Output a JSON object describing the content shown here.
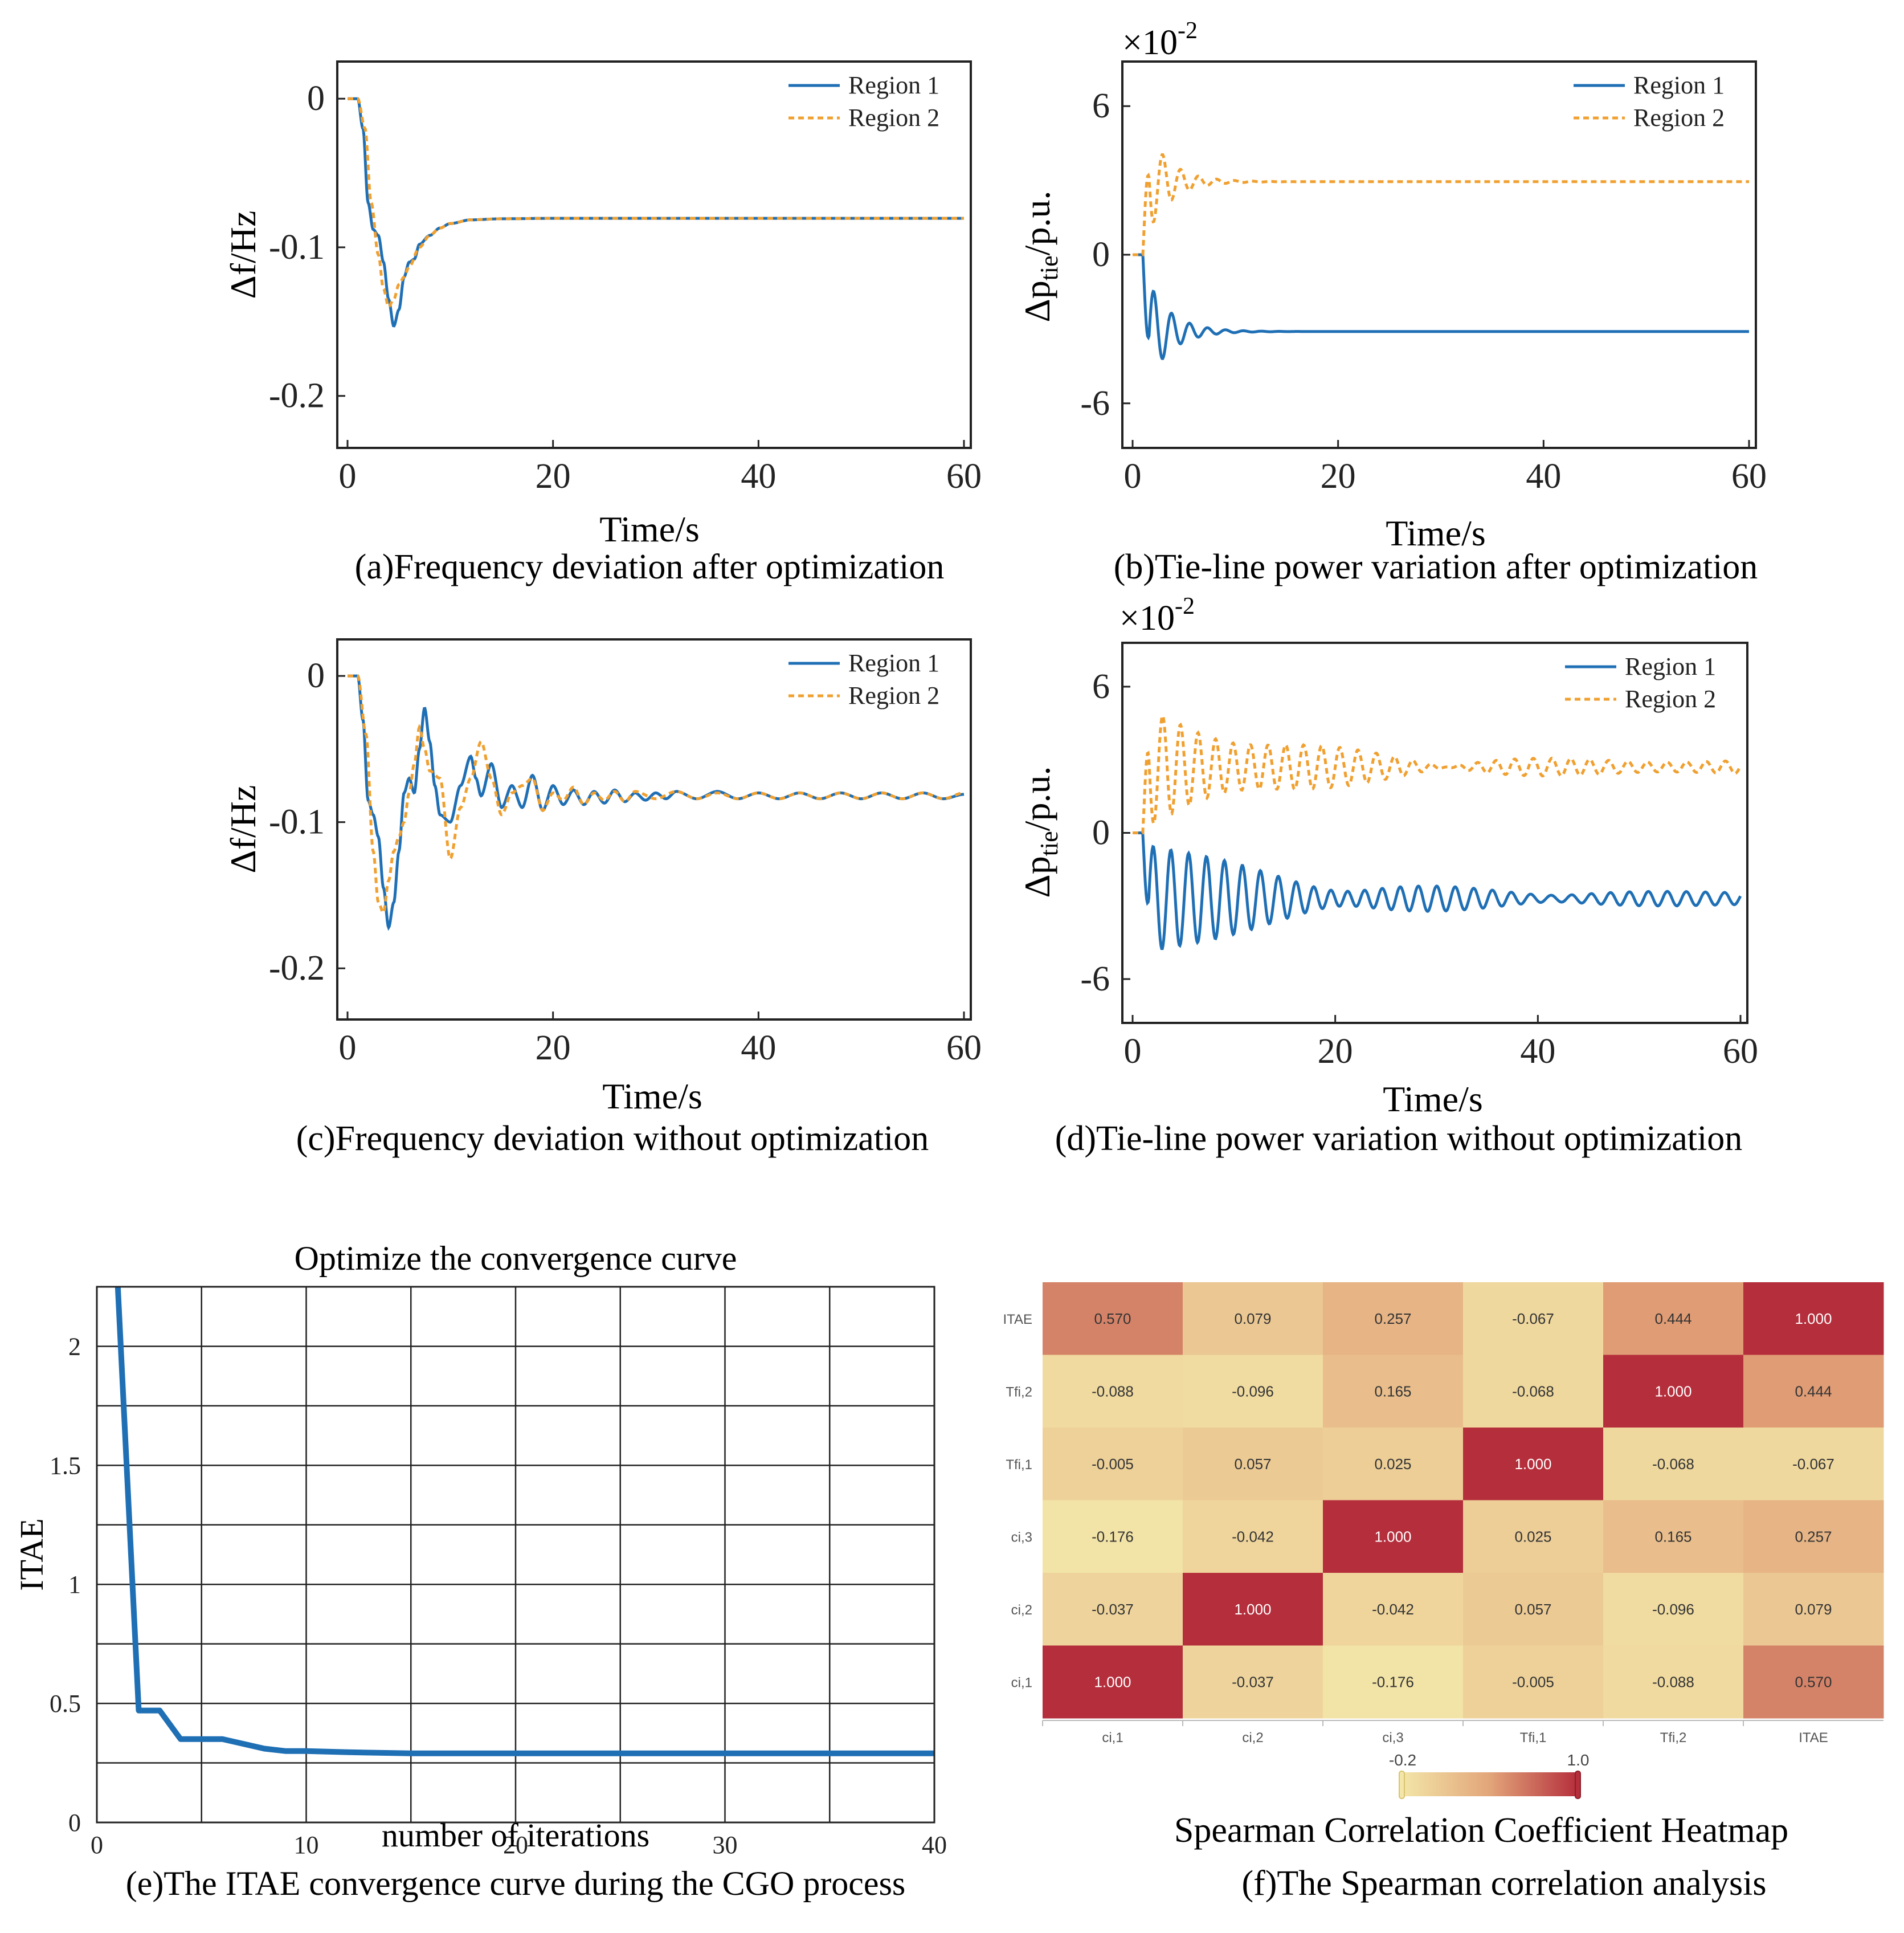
{
  "colors": {
    "region1": "#1f6fb5",
    "region2": "#f0a030",
    "itae_line": "#1f6fb5",
    "grid": "#222222",
    "heat_low": "#f3e6a8",
    "heat_high": "#b52e3c"
  },
  "chart_data": [
    {
      "id": "a",
      "type": "line",
      "caption": "(a)Frequency deviation after optimization",
      "xlabel": "Time/s",
      "ylabel": "Δf/Hz",
      "xlim": [
        0,
        60
      ],
      "ylim": [
        -0.235,
        0.025
      ],
      "xticks": [
        0,
        20,
        40,
        60
      ],
      "xtick_labels": [
        "0",
        "20",
        "40",
        "60"
      ],
      "yticks": [
        0,
        -0.1,
        -0.2
      ],
      "ytick_labels": [
        "0",
        "-0.1",
        "-0.2"
      ],
      "legend": [
        "Region 1",
        "Region 2"
      ],
      "legend_position": "top-right",
      "series": [
        {
          "name": "Region 1",
          "style": "solid",
          "points": [
            [
              0,
              0
            ],
            [
              1,
              0
            ],
            [
              1.5,
              -0.02
            ],
            [
              2,
              -0.07
            ],
            [
              2.5,
              -0.088
            ],
            [
              3,
              -0.092
            ],
            [
              3.5,
              -0.11
            ],
            [
              4,
              -0.135
            ],
            [
              4.5,
              -0.153
            ],
            [
              5,
              -0.142
            ],
            [
              5.5,
              -0.12
            ],
            [
              6,
              -0.11
            ],
            [
              6.5,
              -0.108
            ],
            [
              7,
              -0.098
            ],
            [
              8,
              -0.092
            ],
            [
              9,
              -0.087
            ],
            [
              10,
              -0.084
            ],
            [
              12,
              -0.0815
            ],
            [
              15,
              -0.0808
            ],
            [
              20,
              -0.0805
            ],
            [
              60,
              -0.0805
            ]
          ]
        },
        {
          "name": "Region 2",
          "style": "dashed",
          "points": [
            [
              0,
              0
            ],
            [
              1,
              0
            ],
            [
              1.7,
              -0.02
            ],
            [
              2.3,
              -0.07
            ],
            [
              3,
              -0.105
            ],
            [
              3.5,
              -0.128
            ],
            [
              4,
              -0.14
            ],
            [
              4.5,
              -0.135
            ],
            [
              5,
              -0.125
            ],
            [
              5.5,
              -0.12
            ],
            [
              6,
              -0.113
            ],
            [
              7,
              -0.1
            ],
            [
              8,
              -0.092
            ],
            [
              9,
              -0.087
            ],
            [
              10,
              -0.084
            ],
            [
              12,
              -0.0815
            ],
            [
              15,
              -0.0808
            ],
            [
              20,
              -0.0805
            ],
            [
              60,
              -0.0805
            ]
          ]
        }
      ]
    },
    {
      "id": "b",
      "type": "line",
      "caption": "(b)Tie-line power variation after optimization",
      "xlabel": "Time/s",
      "ylabel": "Δp_tie/p.u.",
      "scale_label": "×10",
      "scale_exp": "-2",
      "xlim": [
        0,
        60
      ],
      "ylim": [
        -7.8,
        7.8
      ],
      "xticks": [
        0,
        20,
        40,
        60
      ],
      "xtick_labels": [
        "0",
        "20",
        "40",
        "60"
      ],
      "yticks": [
        6,
        0,
        -6
      ],
      "ytick_labels": [
        "6",
        "0",
        "-6"
      ],
      "legend": [
        "Region 1",
        "Region 2"
      ],
      "legend_position": "top-right",
      "series": [
        {
          "name": "Region 1",
          "style": "solid",
          "mode": "osc",
          "start": 1.0,
          "final": -3.1,
          "amp": 2.6,
          "decay": 0.45,
          "period": 1.75,
          "sign": -1
        },
        {
          "name": "Region 2",
          "style": "dashed",
          "mode": "osc",
          "start": 1.0,
          "final": 2.95,
          "amp": 2.6,
          "decay": 0.45,
          "period": 1.75,
          "sign": 1
        }
      ]
    },
    {
      "id": "c",
      "type": "line",
      "caption": "(c)Frequency deviation without optimization",
      "xlabel": "Time/s",
      "ylabel": "Δf/Hz",
      "xlim": [
        0,
        60
      ],
      "ylim": [
        -0.235,
        0.025
      ],
      "xticks": [
        0,
        20,
        40,
        60
      ],
      "xtick_labels": [
        "0",
        "20",
        "40",
        "60"
      ],
      "yticks": [
        0,
        -0.1,
        -0.2
      ],
      "ytick_labels": [
        "0",
        "-0.1",
        "-0.2"
      ],
      "legend": [
        "Region 1",
        "Region 2"
      ],
      "legend_position": "top-right",
      "series": [
        {
          "name": "Region 1",
          "style": "solid",
          "points": [
            [
              0,
              0
            ],
            [
              1,
              0
            ],
            [
              1.5,
              -0.03
            ],
            [
              2,
              -0.085
            ],
            [
              2.5,
              -0.095
            ],
            [
              3,
              -0.11
            ],
            [
              3.5,
              -0.145
            ],
            [
              4,
              -0.172
            ],
            [
              4.5,
              -0.155
            ],
            [
              5,
              -0.12
            ],
            [
              5.5,
              -0.08
            ],
            [
              6,
              -0.07
            ],
            [
              6.5,
              -0.08
            ],
            [
              7,
              -0.05
            ],
            [
              7.5,
              -0.022
            ],
            [
              8,
              -0.045
            ],
            [
              8.5,
              -0.075
            ],
            [
              9,
              -0.095
            ],
            [
              10,
              -0.1
            ],
            [
              11,
              -0.075
            ],
            [
              12,
              -0.055
            ],
            [
              12.5,
              -0.07
            ],
            [
              13,
              -0.082
            ],
            [
              14,
              -0.06
            ],
            [
              15,
              -0.09
            ],
            [
              16,
              -0.075
            ],
            [
              17,
              -0.09
            ],
            [
              18,
              -0.068
            ],
            [
              19,
              -0.092
            ],
            [
              20,
              -0.075
            ],
            [
              21,
              -0.088
            ],
            [
              22,
              -0.078
            ],
            [
              23,
              -0.088
            ],
            [
              24,
              -0.079
            ],
            [
              25,
              -0.087
            ],
            [
              26,
              -0.078
            ],
            [
              27,
              -0.086
            ],
            [
              28,
              -0.08
            ],
            [
              29,
              -0.085
            ],
            [
              30,
              -0.08
            ],
            [
              31,
              -0.084
            ],
            [
              32,
              -0.079
            ],
            [
              34,
              -0.084
            ],
            [
              36,
              -0.079
            ],
            [
              38,
              -0.084
            ],
            [
              40,
              -0.08
            ],
            [
              42,
              -0.084
            ],
            [
              44,
              -0.08
            ],
            [
              46,
              -0.084
            ],
            [
              48,
              -0.08
            ],
            [
              50,
              -0.084
            ],
            [
              52,
              -0.08
            ],
            [
              54,
              -0.084
            ],
            [
              56,
              -0.08
            ],
            [
              58,
              -0.084
            ],
            [
              60,
              -0.081
            ]
          ]
        },
        {
          "name": "Region 2",
          "style": "dashed",
          "points": [
            [
              0,
              0
            ],
            [
              1,
              0
            ],
            [
              1.8,
              -0.04
            ],
            [
              2.5,
              -0.12
            ],
            [
              3,
              -0.155
            ],
            [
              3.5,
              -0.162
            ],
            [
              4,
              -0.14
            ],
            [
              4.5,
              -0.12
            ],
            [
              5,
              -0.11
            ],
            [
              5.5,
              -0.1
            ],
            [
              6,
              -0.08
            ],
            [
              6.5,
              -0.06
            ],
            [
              7,
              -0.035
            ],
            [
              7.5,
              -0.05
            ],
            [
              8,
              -0.065
            ],
            [
              9,
              -0.07
            ],
            [
              10,
              -0.125
            ],
            [
              11,
              -0.09
            ],
            [
              12,
              -0.07
            ],
            [
              13,
              -0.045
            ],
            [
              14,
              -0.07
            ],
            [
              15,
              -0.095
            ],
            [
              16,
              -0.08
            ],
            [
              17,
              -0.075
            ],
            [
              18,
              -0.07
            ],
            [
              19,
              -0.092
            ],
            [
              20,
              -0.08
            ],
            [
              21,
              -0.085
            ],
            [
              22,
              -0.076
            ],
            [
              23,
              -0.088
            ],
            [
              24,
              -0.08
            ],
            [
              25,
              -0.085
            ],
            [
              26,
              -0.079
            ],
            [
              27,
              -0.086
            ],
            [
              28,
              -0.079
            ],
            [
              30,
              -0.084
            ],
            [
              32,
              -0.079
            ],
            [
              34,
              -0.084
            ],
            [
              36,
              -0.08
            ],
            [
              38,
              -0.084
            ],
            [
              40,
              -0.08
            ],
            [
              42,
              -0.084
            ],
            [
              44,
              -0.08
            ],
            [
              46,
              -0.084
            ],
            [
              48,
              -0.08
            ],
            [
              50,
              -0.084
            ],
            [
              52,
              -0.08
            ],
            [
              54,
              -0.084
            ],
            [
              56,
              -0.08
            ],
            [
              58,
              -0.084
            ],
            [
              60,
              -0.08
            ]
          ]
        }
      ]
    },
    {
      "id": "d",
      "type": "line",
      "caption": "(d)Tie-line power variation without optimization",
      "xlabel": "Time/s",
      "ylabel": "Δp_tie/p.u.",
      "scale_label": "×10",
      "scale_exp": "-2",
      "xlim": [
        0,
        60
      ],
      "ylim": [
        -7.8,
        7.8
      ],
      "xticks": [
        0,
        20,
        40,
        60
      ],
      "xtick_labels": [
        "0",
        "20",
        "40",
        "60"
      ],
      "yticks": [
        6,
        0,
        -6
      ],
      "ytick_labels": [
        "6",
        "0",
        "-6"
      ],
      "legend": [
        "Region 1",
        "Region 2"
      ],
      "legend_position": "top-right",
      "series": [
        {
          "name": "Region 1",
          "style": "solid",
          "mode": "osc2",
          "start": 1.0,
          "final": -2.7,
          "amp": 2.4,
          "decay": 0.075,
          "period": 1.75,
          "sign": -1,
          "wobble": 0.25
        },
        {
          "name": "Region 2",
          "style": "dashed",
          "mode": "osc2",
          "start": 1.0,
          "final": 2.7,
          "amp": 2.4,
          "decay": 0.075,
          "period": 1.75,
          "sign": 1,
          "wobble": 0.25
        }
      ]
    },
    {
      "id": "e",
      "type": "line",
      "title": "Optimize the convergence curve",
      "caption": "(e)The ITAE convergence curve during the CGO process",
      "xlabel": "number of iterations",
      "ylabel": "ITAE",
      "xlim": [
        0,
        40
      ],
      "ylim": [
        0,
        2.25
      ],
      "grid": true,
      "xticks": [
        0,
        10,
        20,
        30,
        40
      ],
      "xtick_labels": [
        "0",
        "10",
        "20",
        "30",
        "40"
      ],
      "yticks": [
        0,
        0.5,
        1,
        1.5,
        2
      ],
      "ytick_labels": [
        "0",
        "0.5",
        "1",
        "1.5",
        "2"
      ],
      "series": [
        {
          "name": "ITAE",
          "points": [
            [
              1,
              2.25
            ],
            [
              2,
              0.47
            ],
            [
              3,
              0.47
            ],
            [
              4,
              0.35
            ],
            [
              5,
              0.35
            ],
            [
              6,
              0.35
            ],
            [
              7,
              0.33
            ],
            [
              8,
              0.31
            ],
            [
              9,
              0.3
            ],
            [
              10,
              0.3
            ],
            [
              12,
              0.295
            ],
            [
              15,
              0.29
            ],
            [
              20,
              0.29
            ],
            [
              25,
              0.29
            ],
            [
              30,
              0.29
            ],
            [
              35,
              0.29
            ],
            [
              40,
              0.29
            ]
          ]
        }
      ]
    },
    {
      "id": "f",
      "type": "heatmap",
      "title": "Spearman Correlation Coefficient Heatmap",
      "caption": "(f)The Spearman correlation analysis",
      "labels": [
        "ci,1",
        "ci,2",
        "ci,3",
        "Tfi,1",
        "Tfi,2",
        "ITAE"
      ],
      "rows_top_to_bottom": [
        "ITAE",
        "Tfi,2",
        "Tfi,1",
        "ci,3",
        "ci,2",
        "ci,1"
      ],
      "matrix": [
        [
          "0.570",
          "0.079",
          "0.257",
          "-0.067",
          "0.444",
          "1.000"
        ],
        [
          "-0.088",
          "-0.096",
          "0.165",
          "-0.068",
          "1.000",
          "0.444"
        ],
        [
          "-0.005",
          "0.057",
          "0.025",
          "1.000",
          "-0.068",
          "-0.067"
        ],
        [
          "-0.176",
          "-0.042",
          "1.000",
          "0.025",
          "0.165",
          "0.257"
        ],
        [
          "-0.037",
          "1.000",
          "-0.042",
          "0.057",
          "-0.096",
          "0.079"
        ],
        [
          "1.000",
          "-0.037",
          "-0.176",
          "-0.005",
          "-0.088",
          "0.570"
        ]
      ],
      "colorbar_min": "-0.2",
      "colorbar_max": "1.0",
      "vmin": -0.2,
      "vmax": 1.0
    }
  ]
}
